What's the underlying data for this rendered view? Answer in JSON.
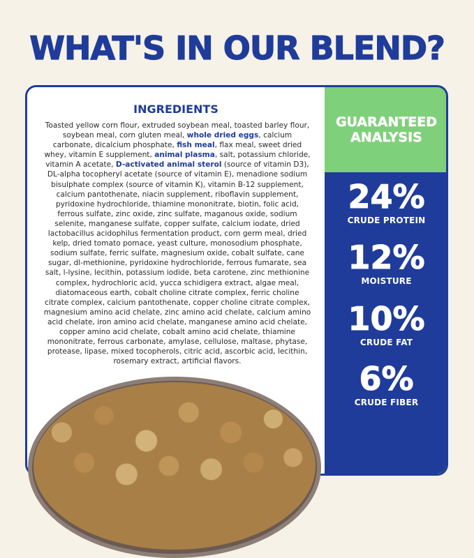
{
  "headline": "WHAT'S IN OUR BLEND?",
  "ingredients": {
    "title": "INGREDIENTS",
    "parts": [
      {
        "text": "Toasted yellow corn flour, extruded soybean meal, toasted barley flour, soybean meal, corn gluten meal, ",
        "hl": false
      },
      {
        "text": "whole dried eggs",
        "hl": true
      },
      {
        "text": ", calcium carbonate, dicalcium phosphate, ",
        "hl": false
      },
      {
        "text": "fish meal",
        "hl": true
      },
      {
        "text": ", flax meal, sweet dried whey, vitamin E supplement, ",
        "hl": false
      },
      {
        "text": "animal plasma",
        "hl": true
      },
      {
        "text": ", salt, potassium chloride, vitamin A acetate, ",
        "hl": false
      },
      {
        "text": "D-activated animal sterol",
        "hl": true
      },
      {
        "text": " (source of vitamin D3), DL-alpha tocopheryl acetate (source of vitamin E), menadione sodium bisulphate complex (source of vitamin K), vitamin B-12 supplement, calcium pantothenate, niacin supplement, riboflavin supplement, pyridoxine hydrochloride, thiamine mononitrate, biotin, folic acid, ferrous sulfate, zinc oxide, zinc sulfate, maganous oxide, sodium selenite, manganese sulfate, copper sulfate, calcium iodate, dried lactobacillus acidophilus fermentation product, corn germ meal, dried kelp, dried tomato pomace, yeast culture, monosodium phosphate, sodium sulfate, ferric sulfate, magnesium oxide, cobalt sulfate, cane sugar, dl-methionine, pyridoxine hydrochloride, ferrous fumarate, sea salt, l-lysine, lecithin, potassium iodide, beta carotene, zinc methionine complex, hydrochloric acid, yucca schidigera extract, algae meal, diatomaceous earth, cobalt choline citrate complex, ferric choline citrate complex, calcium pantothenate, copper choline citrate complex, magnesium amino acid chelate, zinc amino acid chelate, calcium amino acid chelate, iron amino acid chelate, manganese amino acid chelate, copper amino acid chelate, cobalt amino acid chelate, thiamine mononitrate, ferrous carbonate, amylase, cellulose, maltase, phytase, protease, lipase, mixed tocopherols, citric acid, ascorbic acid, lecithin, rosemary extract, artificial flavors.",
        "hl": false
      }
    ]
  },
  "analysis": {
    "title_line1": "GUARANTEED",
    "title_line2": "ANALYSIS",
    "stats": [
      {
        "value": "24%",
        "label": "CRUDE PROTEIN"
      },
      {
        "value": "12%",
        "label": "MOISTURE"
      },
      {
        "value": "10%",
        "label": "CRUDE FAT"
      },
      {
        "value": "6%",
        "label": "CRUDE FIBER"
      }
    ]
  },
  "colors": {
    "brand_blue": "#1f3c9a",
    "accent_green": "#7fd07a",
    "background": "#f6f2e8"
  }
}
